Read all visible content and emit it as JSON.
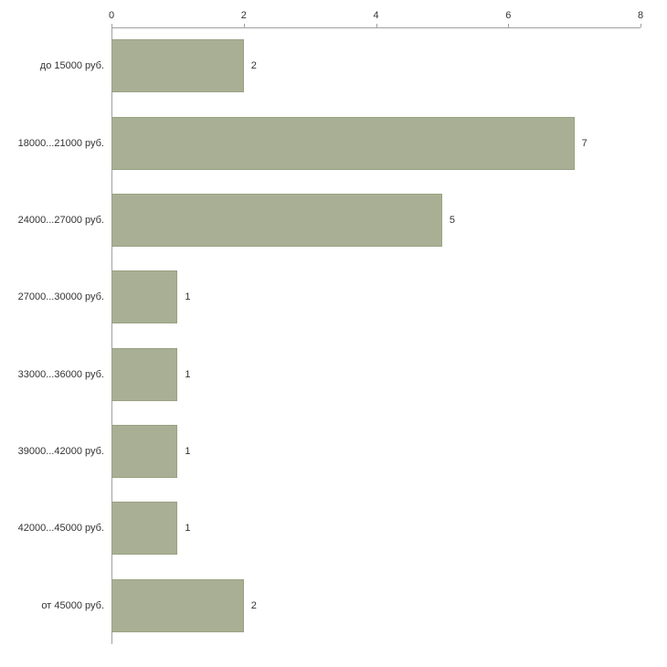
{
  "chart_data": {
    "type": "bar",
    "orientation": "horizontal",
    "title": "",
    "xlabel": "",
    "ylabel": "",
    "categories": [
      "до 15000 руб.",
      "18000...21000 руб.",
      "24000...27000 руб.",
      "27000...30000 руб.",
      "33000...36000 руб.",
      "39000...42000 руб.",
      "42000...45000 руб.",
      "от 45000 руб."
    ],
    "values": [
      2,
      7,
      5,
      1,
      1,
      1,
      1,
      2
    ],
    "xlim": [
      0,
      8
    ],
    "x_ticks": [
      "0",
      "2",
      "4",
      "6",
      "8"
    ],
    "grid": "off",
    "legend": "none",
    "colors": {
      "bar_fill": "#a9af94",
      "bar_border": "#99a183",
      "axis": "#a0a0a0",
      "text": "#333333",
      "background": "#ffffff"
    }
  }
}
